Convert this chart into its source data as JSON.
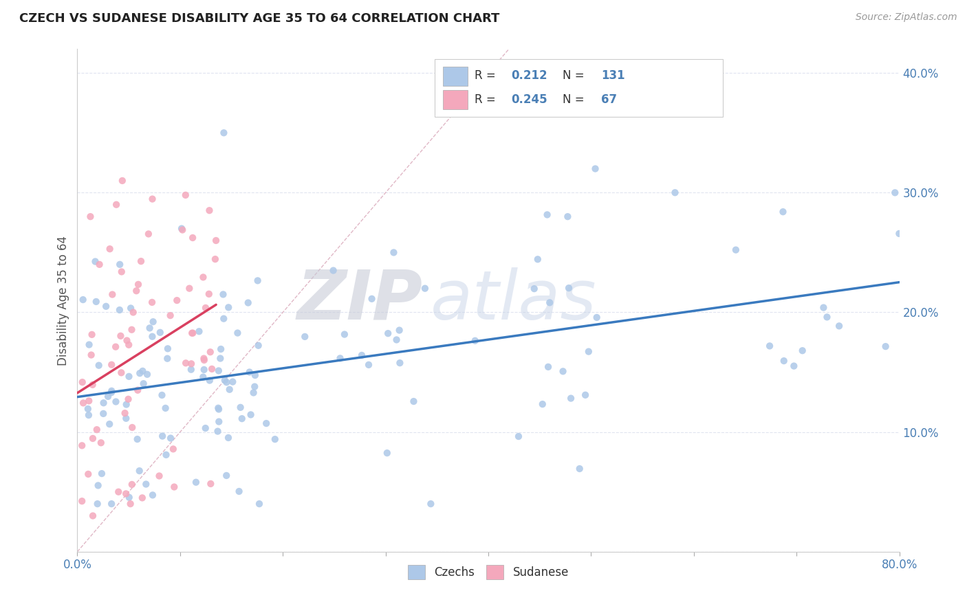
{
  "title": "CZECH VS SUDANESE DISABILITY AGE 35 TO 64 CORRELATION CHART",
  "source": "Source: ZipAtlas.com",
  "ylabel": "Disability Age 35 to 64",
  "xlim": [
    0.0,
    0.8
  ],
  "ylim": [
    0.0,
    0.42
  ],
  "czech_color": "#adc8e8",
  "sudanese_color": "#f4a8bc",
  "czech_trend_color": "#3a7abf",
  "sudanese_trend_color": "#d94060",
  "ref_line_color": "#ddbbcc",
  "grid_color": "#e0e4f0",
  "background_color": "#ffffff",
  "watermark_zip": "ZIP",
  "watermark_atlas": "atlas",
  "legend_r_czech": "0.212",
  "legend_n_czech": "131",
  "legend_r_sudanese": "0.245",
  "legend_n_sudanese": "67",
  "title_fontsize": 13,
  "source_fontsize": 10,
  "tick_fontsize": 12,
  "ylabel_fontsize": 12
}
